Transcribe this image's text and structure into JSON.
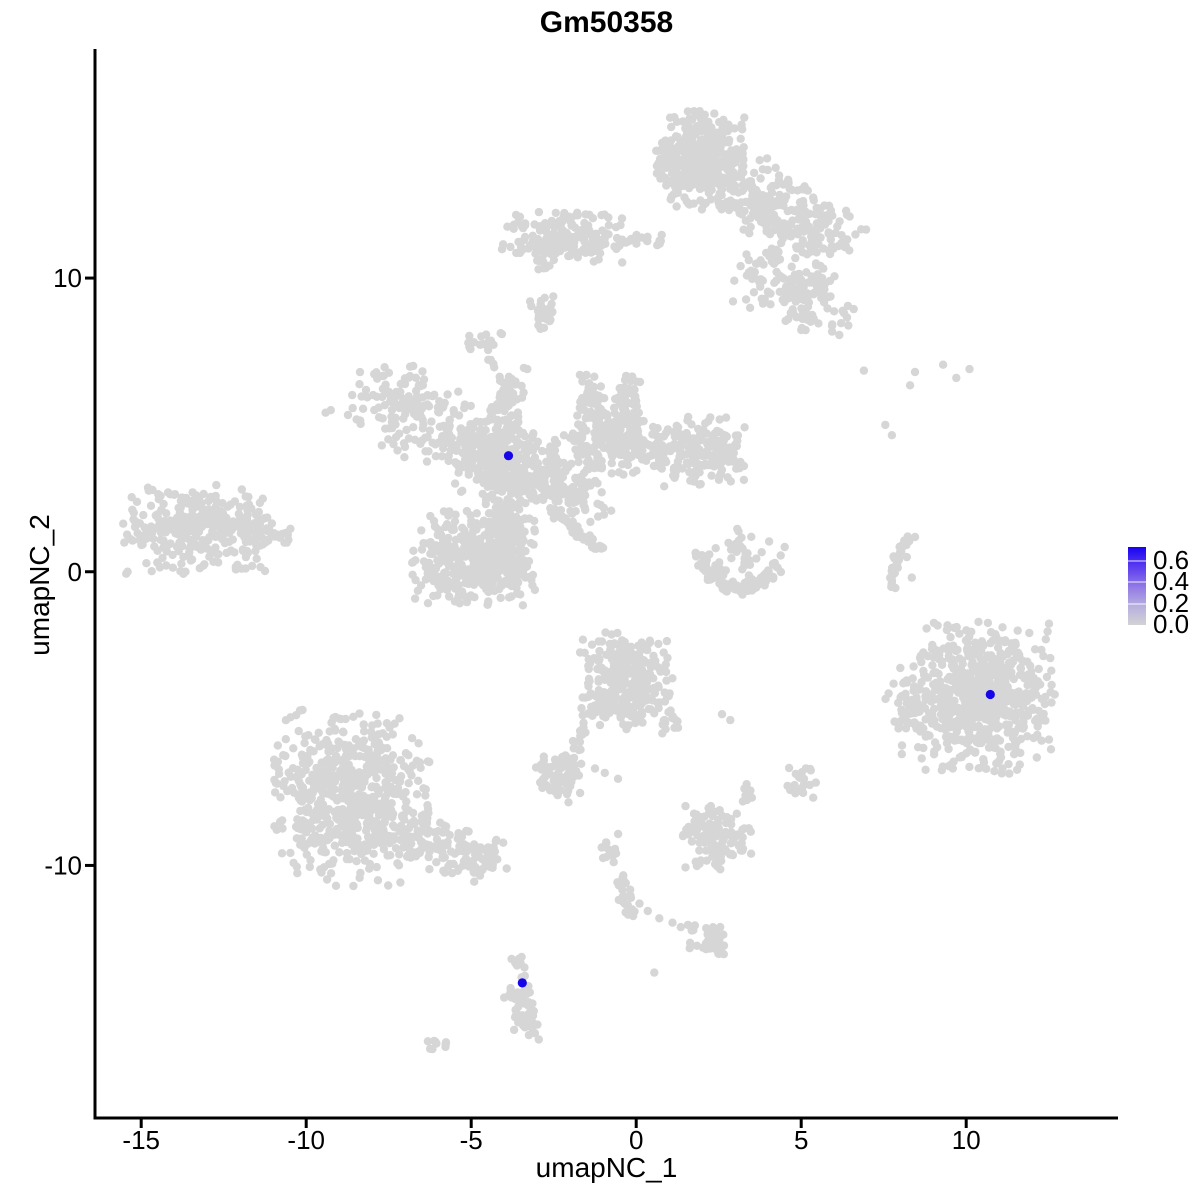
{
  "page": {
    "background": "#FFFFFF"
  },
  "chart_data": {
    "type": "scatter",
    "title": "Gm50358",
    "xlabel": "umapNC_1",
    "ylabel": "umapNC_2",
    "xlim": [
      -16.4,
      14.6
    ],
    "ylim": [
      -18.6,
      17.8
    ],
    "x_ticks": [
      -15,
      -10,
      -5,
      0,
      5,
      10
    ],
    "x_tick_labels": [
      "-15",
      "-10",
      "-5",
      "0",
      "5",
      "10"
    ],
    "y_ticks": [
      -10,
      0,
      10
    ],
    "y_tick_labels": [
      "-10",
      "0",
      "10"
    ],
    "grid": false,
    "axis_color": "#000000",
    "point_color": "#D6D6D6",
    "highlight_color": "#1505E8",
    "point_radius_px": 4.2,
    "highlight_radius_px": 4.6,
    "legend": {
      "position": "right",
      "ticks": [
        0.0,
        0.2,
        0.4,
        0.6
      ],
      "tick_labels": [
        "0.0",
        "0.2",
        "0.4",
        "0.6"
      ],
      "vmin": 0.0,
      "vmax": 0.72,
      "low_color": "#D3D3D3",
      "high_color": "#1803F0",
      "gradient_stops": [
        "#D3D3D3",
        "#B6AEDF",
        "#9077E7",
        "#5B3BF0",
        "#1803F0"
      ]
    },
    "highlighted_points": [
      [
        -3.87,
        3.95
      ],
      [
        10.73,
        -4.18
      ],
      [
        -3.45,
        -14.0
      ]
    ],
    "clusters": [
      {
        "name": "top-main",
        "type": "gauss",
        "cx": 1.9,
        "cy": 14.0,
        "sx": 0.7,
        "sy": 0.85,
        "rot": 0,
        "clip": 2.0,
        "n": 380
      },
      {
        "name": "top-right-wing",
        "type": "gauss",
        "cx": 4.4,
        "cy": 12.3,
        "sx": 1.3,
        "sy": 0.6,
        "rot": -35,
        "clip": 2.1,
        "n": 260
      },
      {
        "name": "top-lower-lobe",
        "type": "gauss",
        "cx": 4.8,
        "cy": 9.6,
        "sx": 1.0,
        "sy": 0.6,
        "rot": -25,
        "clip": 2.0,
        "n": 150
      },
      {
        "name": "topleft-band",
        "type": "gauss",
        "cx": -2.2,
        "cy": 11.35,
        "sx": 0.95,
        "sy": 0.5,
        "rot": 0,
        "clip": 2.0,
        "n": 170
      },
      {
        "name": "topleft-trail",
        "type": "line",
        "p0": [
          -1.3,
          11.15
        ],
        "p1": [
          0.75,
          11.3
        ],
        "jitter": 0.12,
        "n": 30
      },
      {
        "name": "topleft-hang",
        "type": "line",
        "p0": [
          -2.9,
          10.9
        ],
        "p1": [
          -2.85,
          10.25
        ],
        "jitter": 0.08,
        "n": 7
      },
      {
        "name": "small-blob-a",
        "type": "gauss",
        "cx": -2.85,
        "cy": 8.9,
        "sx": 0.22,
        "sy": 0.4,
        "rot": 0,
        "clip": 1.8,
        "n": 26
      },
      {
        "name": "small-blob-b",
        "type": "gauss",
        "cx": -4.65,
        "cy": 7.75,
        "sx": 0.33,
        "sy": 0.25,
        "rot": 0,
        "clip": 1.8,
        "n": 16
      },
      {
        "name": "chain-b-down",
        "type": "line",
        "p0": [
          -4.35,
          7.2
        ],
        "p1": [
          -3.95,
          6.2
        ],
        "jitter": 0.1,
        "n": 9
      },
      {
        "name": "star-nw-arm",
        "type": "gauss",
        "cx": -6.6,
        "cy": 5.35,
        "sx": 1.35,
        "sy": 0.75,
        "rot": -28,
        "clip": 2.0,
        "n": 200
      },
      {
        "name": "star-v-arm",
        "type": "gauss",
        "cx": -3.95,
        "cy": 5.4,
        "sx": 0.28,
        "sy": 0.8,
        "rot": 0,
        "clip": 2.0,
        "n": 90
      },
      {
        "name": "star-knot",
        "type": "gauss",
        "cx": -4.05,
        "cy": 3.8,
        "sx": 0.85,
        "sy": 0.55,
        "rot": 0,
        "clip": 2.0,
        "n": 260
      },
      {
        "name": "star-se-arm",
        "type": "gauss",
        "cx": -2.4,
        "cy": 2.85,
        "sx": 0.95,
        "sy": 0.5,
        "rot": -28,
        "clip": 2.0,
        "n": 150
      },
      {
        "name": "star-ur-blob",
        "type": "gauss",
        "cx": -0.9,
        "cy": 4.5,
        "sx": 0.65,
        "sy": 0.6,
        "rot": 0,
        "clip": 2.0,
        "n": 180
      },
      {
        "name": "star-ur-prong1",
        "type": "gauss",
        "cx": -1.35,
        "cy": 5.9,
        "sx": 0.22,
        "sy": 0.6,
        "rot": 0,
        "clip": 1.8,
        "n": 45
      },
      {
        "name": "star-ur-prong2",
        "type": "gauss",
        "cx": -0.25,
        "cy": 5.75,
        "sx": 0.22,
        "sy": 0.55,
        "rot": 0,
        "clip": 1.8,
        "n": 45
      },
      {
        "name": "star-right-band",
        "type": "gauss",
        "cx": 0.35,
        "cy": 4.3,
        "sx": 0.9,
        "sy": 0.35,
        "rot": -12,
        "clip": 2.0,
        "n": 90
      },
      {
        "name": "star-right-end",
        "type": "gauss",
        "cx": 2.05,
        "cy": 4.1,
        "sx": 0.65,
        "sy": 0.6,
        "rot": 0,
        "clip": 2.0,
        "n": 170
      },
      {
        "name": "star-down-arm",
        "type": "gauss",
        "cx": -3.9,
        "cy": 1.05,
        "sx": 0.42,
        "sy": 1.15,
        "rot": 0,
        "clip": 2.0,
        "n": 240
      },
      {
        "name": "star-sw-blob",
        "type": "gauss",
        "cx": -5.3,
        "cy": 0.5,
        "sx": 0.8,
        "sy": 0.8,
        "rot": 0,
        "clip": 2.0,
        "n": 300
      },
      {
        "name": "diagonal-streak",
        "type": "line",
        "p0": [
          -2.55,
          2.1
        ],
        "p1": [
          -1.1,
          0.75
        ],
        "jitter": 0.07,
        "n": 45
      },
      {
        "name": "left-main",
        "type": "gauss",
        "cx": -13.3,
        "cy": 1.45,
        "sx": 1.15,
        "sy": 0.8,
        "rot": 0,
        "clip": 2.0,
        "n": 290
      },
      {
        "name": "left-tip",
        "type": "gauss",
        "cx": -11.3,
        "cy": 1.3,
        "sx": 0.55,
        "sy": 0.28,
        "rot": -8,
        "clip": 1.8,
        "n": 50
      },
      {
        "name": "crescent-arc",
        "type": "arc",
        "cx": 3.2,
        "cy": 1.0,
        "rx": 1.25,
        "ry": 1.55,
        "a1": 195,
        "a2": 345,
        "jitter": 0.12,
        "n": 110
      },
      {
        "name": "crescent-fill",
        "type": "gauss",
        "cx": 3.2,
        "cy": 0.7,
        "sx": 0.6,
        "sy": 0.55,
        "rot": 0,
        "clip": 1.8,
        "n": 30
      },
      {
        "name": "right-thin-arc",
        "type": "bezier",
        "p0": [
          7.8,
          -0.55
        ],
        "pc": [
          7.7,
          0.45
        ],
        "p1": [
          8.45,
          1.35
        ],
        "jitter": 0.055,
        "n": 40
      },
      {
        "name": "right-main",
        "type": "gauss",
        "cx": 10.35,
        "cy": -4.3,
        "sx": 1.15,
        "sy": 1.25,
        "rot": 0,
        "clip": 2.1,
        "n": 680
      },
      {
        "name": "right-appendage",
        "type": "gauss",
        "cx": 8.05,
        "cy": -4.5,
        "sx": 0.4,
        "sy": 0.55,
        "rot": 0,
        "clip": 1.8,
        "n": 34
      },
      {
        "name": "centerbottom-main",
        "type": "gauss",
        "cx": -0.3,
        "cy": -3.7,
        "sx": 0.72,
        "sy": 0.85,
        "rot": 0,
        "clip": 2.0,
        "n": 300
      },
      {
        "name": "centerbottom-tail",
        "type": "line",
        "p0": [
          -1.3,
          -4.6
        ],
        "p1": [
          -1.85,
          -6.1
        ],
        "jitter": 0.09,
        "n": 22
      },
      {
        "name": "centerbottom-sprinkle",
        "type": "gauss",
        "cx": 0.9,
        "cy": -4.9,
        "sx": 0.25,
        "sy": 0.45,
        "rot": 0,
        "clip": 1.8,
        "n": 14
      },
      {
        "name": "left-small-cluster",
        "type": "gauss",
        "cx": -2.35,
        "cy": -6.95,
        "sx": 0.42,
        "sy": 0.38,
        "rot": 0,
        "clip": 1.9,
        "n": 65
      },
      {
        "name": "small-right-blob",
        "type": "gauss",
        "cx": 4.95,
        "cy": -7.2,
        "sx": 0.28,
        "sy": 0.32,
        "rot": 0,
        "clip": 1.8,
        "n": 22
      },
      {
        "name": "tiny-mid-blob",
        "type": "gauss",
        "cx": 3.4,
        "cy": -7.55,
        "sx": 0.17,
        "sy": 0.2,
        "rot": 0,
        "clip": 1.6,
        "n": 11
      },
      {
        "name": "midbottom-cluster",
        "type": "gauss",
        "cx": 2.4,
        "cy": -9.05,
        "sx": 0.55,
        "sy": 0.55,
        "rot": 0,
        "clip": 2.0,
        "n": 120
      },
      {
        "name": "tiny-left-blob",
        "type": "gauss",
        "cx": -0.8,
        "cy": -9.4,
        "sx": 0.16,
        "sy": 0.33,
        "rot": 0,
        "clip": 1.7,
        "n": 13
      },
      {
        "name": "chain-down",
        "type": "line",
        "p0": [
          -0.5,
          -10.3
        ],
        "p1": [
          -0.2,
          -12.0
        ],
        "jitter": 0.12,
        "n": 26
      },
      {
        "name": "bottom-small",
        "type": "gauss",
        "cx": 2.2,
        "cy": -12.5,
        "sx": 0.35,
        "sy": 0.3,
        "rot": 0,
        "clip": 1.9,
        "n": 40
      },
      {
        "name": "bottomleft-main",
        "type": "gauss",
        "cx": -8.65,
        "cy": -7.7,
        "sx": 1.2,
        "sy": 1.5,
        "rot": 0,
        "clip": 2.0,
        "n": 620
      },
      {
        "name": "bottomleft-tail",
        "type": "gauss",
        "cx": -5.5,
        "cy": -9.5,
        "sx": 1.0,
        "sy": 0.45,
        "rot": -20,
        "clip": 2.0,
        "n": 140
      },
      {
        "name": "comma-top",
        "type": "gauss",
        "cx": -3.55,
        "cy": -13.55,
        "sx": 0.14,
        "sy": 0.3,
        "rot": 0,
        "clip": 1.7,
        "n": 10
      },
      {
        "name": "comma-body",
        "type": "gauss",
        "cx": -3.4,
        "cy": -15.0,
        "sx": 0.25,
        "sy": 0.62,
        "rot": 12,
        "clip": 1.9,
        "n": 48
      },
      {
        "name": "bottom-tiny-blob",
        "type": "gauss",
        "cx": -6.05,
        "cy": -16.1,
        "sx": 0.2,
        "sy": 0.13,
        "rot": 0,
        "clip": 1.6,
        "n": 9
      }
    ],
    "sparse_points": [
      [
        6.9,
        6.85
      ],
      [
        8.45,
        6.8
      ],
      [
        9.3,
        7.05
      ],
      [
        9.7,
        6.6
      ],
      [
        10.1,
        6.9
      ],
      [
        8.3,
        6.35
      ],
      [
        7.55,
        5.0
      ],
      [
        7.75,
        4.65
      ],
      [
        8.2,
        0.5
      ],
      [
        8.35,
        -0.2
      ],
      [
        8.7,
        -2.75
      ],
      [
        -11.75,
        2.55
      ],
      [
        -11.95,
        2.8
      ],
      [
        -14.5,
        0.3
      ],
      [
        2.6,
        -4.85
      ],
      [
        2.85,
        -5.05
      ],
      [
        -1.25,
        -6.7
      ],
      [
        -0.95,
        -6.85
      ],
      [
        -0.55,
        -7.05
      ],
      [
        -2.05,
        -7.85
      ],
      [
        0.35,
        -11.55
      ],
      [
        0.7,
        -11.8
      ],
      [
        1.1,
        -11.95
      ],
      [
        1.35,
        -12.1
      ],
      [
        0.1,
        -11.3
      ],
      [
        0.55,
        -13.65
      ],
      [
        -4.0,
        -14.5
      ],
      [
        -3.4,
        11.3
      ],
      [
        -3.3,
        6.9
      ],
      [
        5.9,
        12.3
      ],
      [
        5.45,
        10.5
      ],
      [
        6.35,
        11.1
      ]
    ]
  }
}
